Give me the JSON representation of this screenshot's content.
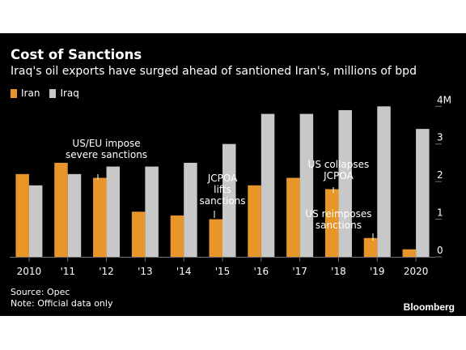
{
  "header": {
    "title": "Cost of Sanctions",
    "subtitle": "Iraq's oil exports have surged ahead of santioned Iran's, millions of bpd"
  },
  "legend": {
    "iran": "Iran",
    "iraq": "Iraq"
  },
  "footer": {
    "source": "Source: Opec",
    "note": "Note: Official data only",
    "brand": "Bloomberg"
  },
  "colors": {
    "background": "#000000",
    "iran": "#e8962a",
    "iraq": "#c8c8c8",
    "text": "#ffffff",
    "grid": "#6e6e6e"
  },
  "chart_data": {
    "type": "bar",
    "title": "Cost of Sanctions",
    "subtitle": "Iraq's oil exports have surged ahead of santioned Iran's, millions of bpd",
    "categories": [
      "2010",
      "'11",
      "'12",
      "'13",
      "'14",
      "'15",
      "'16",
      "'17",
      "'18",
      "'19",
      "2020"
    ],
    "series": [
      {
        "name": "Iran",
        "color": "#e8962a",
        "values": [
          2.2,
          2.5,
          2.1,
          1.2,
          1.1,
          1.0,
          1.9,
          2.1,
          1.8,
          0.5,
          0.2
        ]
      },
      {
        "name": "Iraq",
        "color": "#c8c8c8",
        "values": [
          1.9,
          2.2,
          2.4,
          2.4,
          2.5,
          3.0,
          3.8,
          3.8,
          3.9,
          4.0,
          3.4
        ]
      }
    ],
    "yticks": [
      {
        "value": 0,
        "label": "0"
      },
      {
        "value": 1,
        "label": "1"
      },
      {
        "value": 2,
        "label": "2"
      },
      {
        "value": 3,
        "label": "3"
      },
      {
        "value": 4,
        "label": "4M"
      }
    ],
    "ylim": [
      0,
      4.2
    ],
    "y_axis_position": "right",
    "grid": false,
    "legend_position": "top-left",
    "annotations": [
      {
        "category_index": 2,
        "lines": [
          "US/EU impose",
          "severe sanctions"
        ]
      },
      {
        "category_index": 5,
        "lines": [
          "JCPOA",
          "lifts",
          "sanctions"
        ]
      },
      {
        "category_index": 8,
        "lines": [
          "US collapses",
          "JCPOA"
        ]
      },
      {
        "category_index": 8,
        "lines": [
          "US reimposes",
          "sanctions"
        ]
      }
    ]
  }
}
